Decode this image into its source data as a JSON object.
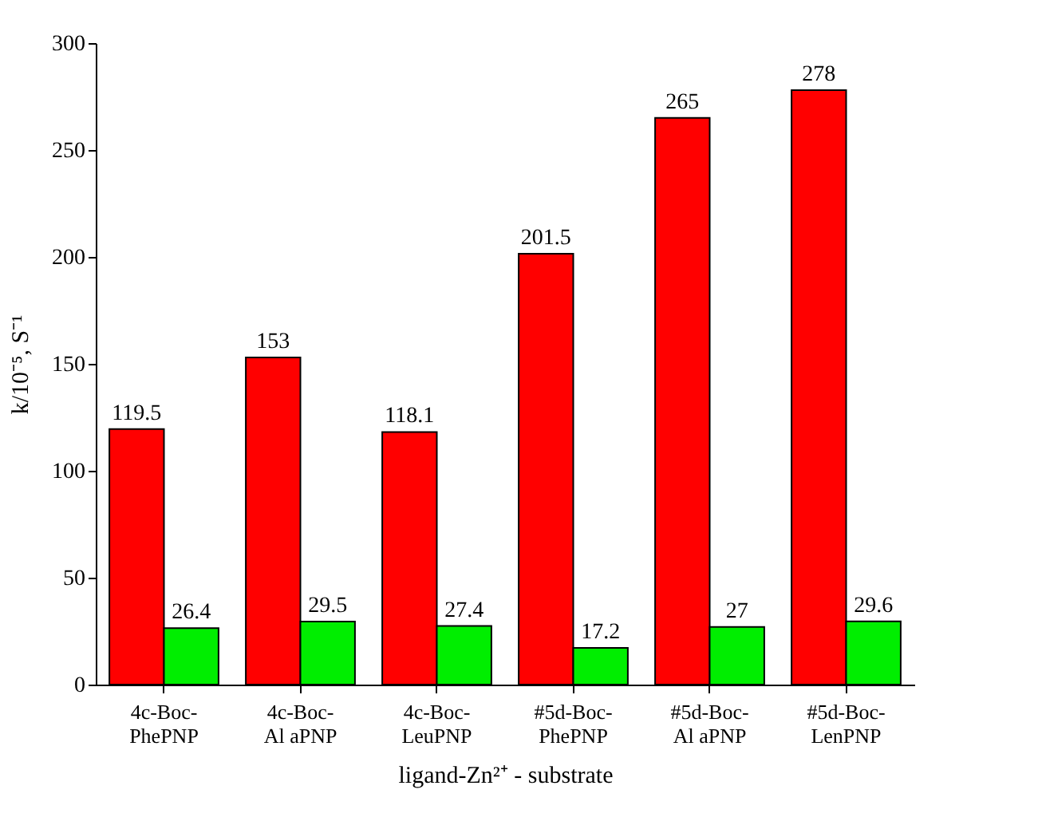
{
  "chart_data": {
    "type": "bar",
    "xlabel": "ligand-Zn²⁺ - substrate",
    "ylabel": "k/10⁻⁵, S⁻¹",
    "categories": [
      "4c-Boc-\nPhePNP",
      "4c-Boc-\nAl aPNP",
      "4c-Boc-\nLeuPNP",
      "#5d-Boc-\nPhePNP",
      "#5d-Boc-\nAl aPNP",
      "#5d-Boc-\nLenPNP"
    ],
    "series": [
      {
        "color": "#ff0000",
        "values": [
          119.5,
          153,
          118.1,
          201.5,
          265,
          278
        ]
      },
      {
        "color": "#00ee00",
        "values": [
          26.4,
          29.5,
          27.4,
          17.2,
          27,
          29.6
        ]
      }
    ],
    "ylim": [
      0,
      300
    ],
    "yticks": [
      0,
      50,
      100,
      150,
      200,
      250,
      300
    ],
    "data_labels": true,
    "grid": false,
    "legend": false
  }
}
